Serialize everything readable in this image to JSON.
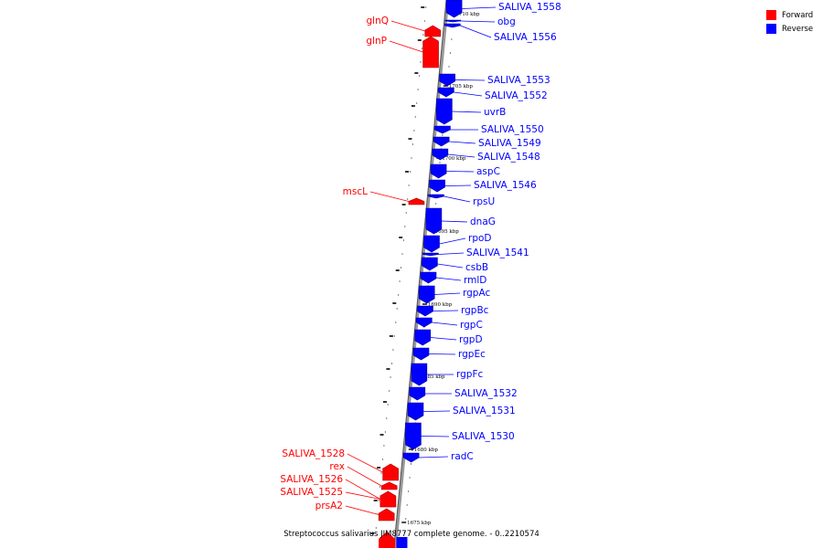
{
  "colors": {
    "forward": "#ff0000",
    "reverse": "#0000ff",
    "backbone": "#999999",
    "tick": "#000000"
  },
  "legend": [
    {
      "label": "Forward",
      "strand": "forward"
    },
    {
      "label": "Reverse",
      "strand": "reverse"
    }
  ],
  "caption_text": "Streptococcus salivarius JIM8777 complete genome. - 0..2210574",
  "scale_labels": [
    "1710 kbp",
    "1705 kbp",
    "1700 kbp",
    "1695 kbp",
    "1690 kbp",
    "1685 kbp",
    "1680 kbp",
    "1675 kbp"
  ],
  "genes": [
    {
      "name": "SALIVA_1558",
      "strand": "reverse"
    },
    {
      "name": "obg",
      "strand": "reverse"
    },
    {
      "name": "SALIVA_1556",
      "strand": "reverse"
    },
    {
      "name": "glnQ",
      "strand": "forward"
    },
    {
      "name": "glnP",
      "strand": "forward"
    },
    {
      "name": "SALIVA_1553",
      "strand": "reverse"
    },
    {
      "name": "SALIVA_1552",
      "strand": "reverse"
    },
    {
      "name": "uvrB",
      "strand": "reverse"
    },
    {
      "name": "SALIVA_1550",
      "strand": "reverse"
    },
    {
      "name": "SALIVA_1549",
      "strand": "reverse"
    },
    {
      "name": "SALIVA_1548",
      "strand": "reverse"
    },
    {
      "name": "aspC",
      "strand": "reverse"
    },
    {
      "name": "SALIVA_1546",
      "strand": "reverse"
    },
    {
      "name": "mscL",
      "strand": "forward"
    },
    {
      "name": "rpsU",
      "strand": "reverse"
    },
    {
      "name": "dnaG",
      "strand": "reverse"
    },
    {
      "name": "rpoD",
      "strand": "reverse"
    },
    {
      "name": "SALIVA_1541",
      "strand": "reverse"
    },
    {
      "name": "csbB",
      "strand": "reverse"
    },
    {
      "name": "rmlD",
      "strand": "reverse"
    },
    {
      "name": "rgpAc",
      "strand": "reverse"
    },
    {
      "name": "rgpBc",
      "strand": "reverse"
    },
    {
      "name": "rgpC",
      "strand": "reverse"
    },
    {
      "name": "rgpD",
      "strand": "reverse"
    },
    {
      "name": "rgpEc",
      "strand": "reverse"
    },
    {
      "name": "rgpFc",
      "strand": "reverse"
    },
    {
      "name": "SALIVA_1532",
      "strand": "reverse"
    },
    {
      "name": "SALIVA_1531",
      "strand": "reverse"
    },
    {
      "name": "SALIVA_1530",
      "strand": "reverse"
    },
    {
      "name": "radC",
      "strand": "reverse"
    },
    {
      "name": "SALIVA_1528",
      "strand": "forward"
    },
    {
      "name": "rex",
      "strand": "forward"
    },
    {
      "name": "SALIVA_1526",
      "strand": "forward"
    },
    {
      "name": "SALIVA_1525",
      "strand": "forward"
    },
    {
      "name": "prsA2",
      "strand": "forward"
    }
  ]
}
